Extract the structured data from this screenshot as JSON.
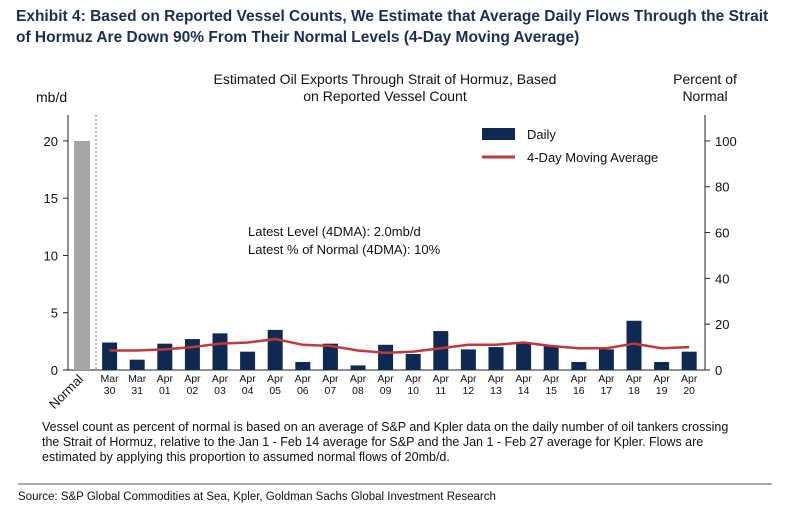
{
  "heading": "Exhibit 4: Based on Reported Vessel Counts, We Estimate that Average Daily Flows Through the Strait of Hormuz Are Down 90% From Their Normal Levels (4-Day Moving Average)",
  "chart_data": {
    "type": "bar",
    "title": "Estimated Oil Exports Through Strait of Hormuz, Based on Reported Vessel Count",
    "ylabel": "mb/d",
    "y2label": "Percent of Normal",
    "annotations": [
      "Latest Level (4DMA): 2.0mb/d",
      "Latest % of Normal (4DMA): 10%"
    ],
    "categories": [
      "Normal",
      "Mar 30",
      "Mar 31",
      "Apr 01",
      "Apr 02",
      "Apr 03",
      "Apr 04",
      "Apr 05",
      "Apr 06",
      "Apr 07",
      "Apr 08",
      "Apr 09",
      "Apr 10",
      "Apr 11",
      "Apr 12",
      "Apr 13",
      "Apr 14",
      "Apr 15",
      "Apr 16",
      "Apr 17",
      "Apr 18",
      "Apr 19",
      "Apr 20"
    ],
    "series": [
      {
        "name": "Daily",
        "type": "bar",
        "axis": "y",
        "color": "#0f2a52",
        "colors": [
          "#a6a6a6",
          "#0f2a52",
          "#0f2a52",
          "#0f2a52",
          "#0f2a52",
          "#0f2a52",
          "#0f2a52",
          "#0f2a52",
          "#0f2a52",
          "#0f2a52",
          "#0f2a52",
          "#0f2a52",
          "#0f2a52",
          "#0f2a52",
          "#0f2a52",
          "#0f2a52",
          "#0f2a52",
          "#0f2a52",
          "#0f2a52",
          "#0f2a52",
          "#0f2a52",
          "#0f2a52",
          "#0f2a52"
        ],
        "values": [
          20,
          2.4,
          0.9,
          2.3,
          2.7,
          3.2,
          1.6,
          3.5,
          0.7,
          2.3,
          0.4,
          2.2,
          1.4,
          3.4,
          1.8,
          2.0,
          2.4,
          2.1,
          0.7,
          1.8,
          4.3,
          0.7,
          1.6
        ]
      },
      {
        "name": "4-Day Moving Average",
        "type": "line",
        "axis": "y2",
        "color": "#c0393b",
        "values": [
          null,
          8.5,
          8.5,
          9,
          10,
          11.5,
          12,
          13.5,
          11,
          10.5,
          8.5,
          7.5,
          8,
          9.5,
          11,
          11,
          12,
          10.5,
          9.5,
          9.5,
          11.5,
          9.5,
          10
        ]
      }
    ],
    "ylim": [
      0,
      22
    ],
    "yticks": [
      0,
      5,
      10,
      15,
      20
    ],
    "y2lim": [
      0,
      110
    ],
    "y2ticks": [
      0,
      20,
      40,
      60,
      80,
      100
    ],
    "legend": "upper right"
  },
  "footnote": "Vessel count as percent of normal is based on an average of S&P and Kpler data on the daily number of oil tankers crossing the Strait of Hormuz, relative to the Jan 1 - Feb 14 average for S&P and the Jan 1 - Feb 27 average for Kpler. Flows are estimated by applying this proportion to assumed normal flows of 20mb/d.",
  "source": "Source: S&P Global Commodities at Sea, Kpler, Goldman Sachs Global Investment Research"
}
